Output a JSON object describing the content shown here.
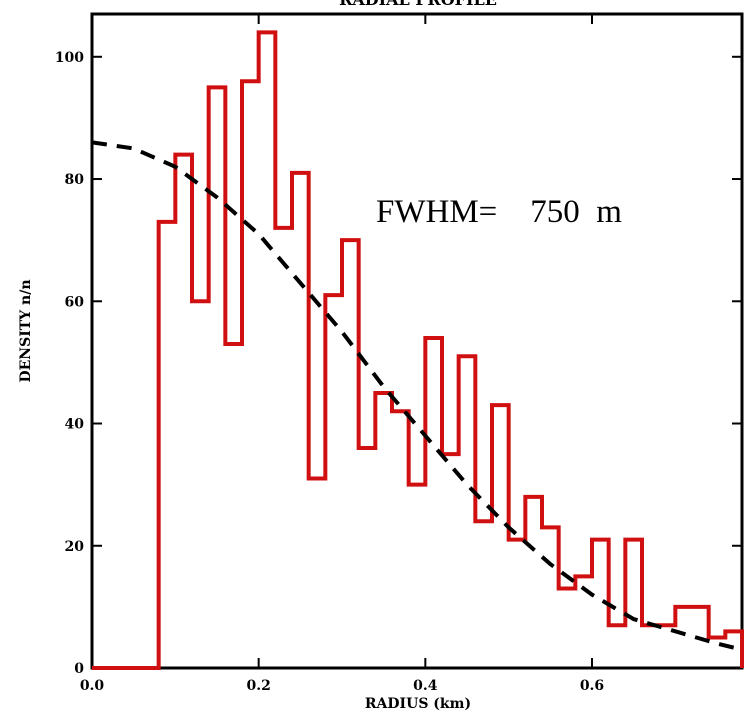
{
  "chart_data": {
    "type": "line",
    "title": "RADIAL PROFILE",
    "xlabel": "RADIUS (km)",
    "ylabel": "DENSITY n/n",
    "xlim": [
      0.0,
      0.78
    ],
    "ylim": [
      0,
      107
    ],
    "x_ticks": [
      0.0,
      0.2,
      0.4,
      0.6
    ],
    "x_tick_labels": [
      "0.0",
      "0.2",
      "0.4",
      "0.6"
    ],
    "y_ticks": [
      0,
      20,
      40,
      60,
      80,
      100
    ],
    "y_tick_labels": [
      "0",
      "20",
      "40",
      "60",
      "80",
      "100"
    ],
    "annotation": "FWHM=    750  m",
    "series": [
      {
        "style": "step-histogram",
        "color": "#d01010",
        "bin_edges": [
          0.0,
          0.08,
          0.1,
          0.12,
          0.14,
          0.16,
          0.18,
          0.2,
          0.22,
          0.24,
          0.26,
          0.28,
          0.3,
          0.32,
          0.34,
          0.36,
          0.38,
          0.4,
          0.42,
          0.44,
          0.46,
          0.48,
          0.5,
          0.52,
          0.54,
          0.56,
          0.58,
          0.6,
          0.62,
          0.64,
          0.66,
          0.7,
          0.74,
          0.76,
          0.78
        ],
        "values": [
          0,
          73,
          84,
          60,
          95,
          53,
          96,
          104,
          72,
          81,
          31,
          61,
          70,
          36,
          45,
          42,
          30,
          54,
          35,
          51,
          24,
          43,
          21,
          28,
          23,
          13,
          15,
          21,
          7,
          21,
          7,
          10,
          5,
          6,
          0
        ]
      },
      {
        "style": "dashed-gaussian-fit",
        "color": "#000000",
        "x": [
          0.0,
          0.05,
          0.1,
          0.15,
          0.2,
          0.25,
          0.3,
          0.35,
          0.4,
          0.45,
          0.5,
          0.55,
          0.6,
          0.65,
          0.7,
          0.75,
          0.78
        ],
        "values": [
          86,
          85,
          82,
          77,
          71,
          63,
          55,
          46,
          38,
          30,
          23,
          17,
          12,
          8,
          6,
          4,
          3
        ]
      }
    ]
  }
}
